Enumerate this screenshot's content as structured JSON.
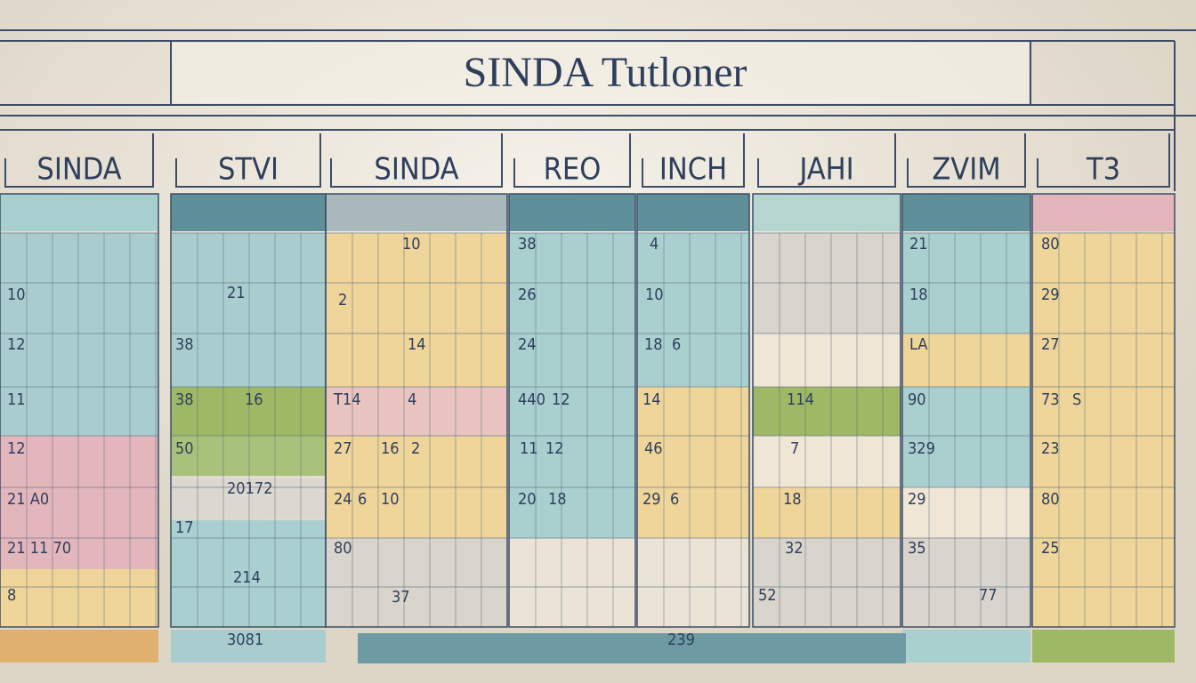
{
  "header": {
    "title": "SINDA Tutloner"
  },
  "columns": [
    {
      "label": "SINDA",
      "cells": [
        "10",
        "12",
        "11",
        "12",
        "21 A0",
        "21 11 70",
        "8"
      ]
    },
    {
      "label": "STVI",
      "cells": [
        "21",
        "38",
        "38",
        "16",
        "50",
        "20172",
        "17",
        "214",
        "3081"
      ]
    },
    {
      "label": "SINDA",
      "cells": [
        "10",
        "2",
        "14",
        "T14",
        "4",
        "27",
        "16",
        "2",
        "24",
        "6",
        "10",
        "80",
        "37",
        "239"
      ]
    },
    {
      "label": "REO",
      "cells": [
        "38",
        "26",
        "24",
        "440",
        "12",
        "11",
        "12",
        "20",
        "18"
      ]
    },
    {
      "label": "INCH",
      "cells": [
        "4",
        "10",
        "18",
        "6",
        "14",
        "46",
        "29",
        "6"
      ]
    },
    {
      "label": "JAHI",
      "cells": [
        "114",
        "7",
        "18",
        "32",
        "52"
      ]
    },
    {
      "label": "ZVIM",
      "cells": [
        "21",
        "18",
        "LA",
        "90",
        "329",
        "29",
        "35",
        "77"
      ]
    },
    {
      "label": "T3",
      "cells": [
        "80",
        "29",
        "27",
        "73",
        "S",
        "23",
        "80",
        "25"
      ]
    }
  ]
}
